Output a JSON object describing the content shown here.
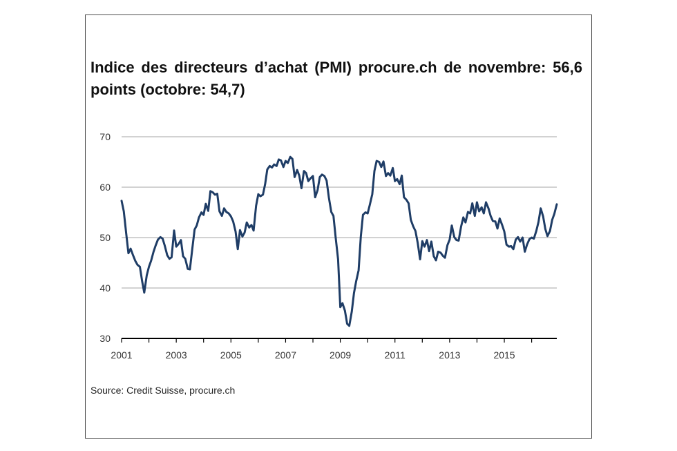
{
  "title": "Indice des directeurs d’achat (PMI) procure.ch de novembre: 56,6 points (octobre: 54,7)",
  "source": "Source: Credit Suisse, procure.ch",
  "colors": {
    "line": "#1f3d66",
    "grid": "#a6a6a6",
    "axis": "#000000"
  },
  "chart_data": {
    "type": "line",
    "title": "Indice des directeurs d’achat (PMI) procure.ch de novembre: 56,6 points (octobre: 54,7)",
    "xlabel": "",
    "ylabel": "",
    "xlim": [
      2001,
      2016.92
    ],
    "ylim": [
      30,
      70
    ],
    "yticks": [
      30,
      40,
      50,
      60,
      70
    ],
    "ytick_labels": [
      "30",
      "40",
      "50",
      "60",
      "70"
    ],
    "xticks": [
      2001,
      2003,
      2005,
      2007,
      2009,
      2011,
      2013,
      2015
    ],
    "xtick_labels": [
      "2001",
      "2003",
      "2005",
      "2007",
      "2009",
      "2011",
      "2013",
      "2015"
    ],
    "grid": true,
    "legend": "none",
    "series": [
      {
        "x": [
          2001.0,
          2001.08,
          2001.17,
          2001.25,
          2001.33,
          2001.42,
          2001.5,
          2001.58,
          2001.67,
          2001.75,
          2001.83,
          2001.92,
          2002.0,
          2002.08,
          2002.17,
          2002.25,
          2002.33,
          2002.42,
          2002.5,
          2002.58,
          2002.67,
          2002.75,
          2002.83,
          2002.92,
          2003.0,
          2003.08,
          2003.17,
          2003.25,
          2003.33,
          2003.42,
          2003.5,
          2003.58,
          2003.67,
          2003.75,
          2003.83,
          2003.92,
          2004.0,
          2004.08,
          2004.17,
          2004.25,
          2004.33,
          2004.42,
          2004.5,
          2004.58,
          2004.67,
          2004.75,
          2004.83,
          2004.92,
          2005.0,
          2005.08,
          2005.17,
          2005.25,
          2005.33,
          2005.42,
          2005.5,
          2005.58,
          2005.67,
          2005.75,
          2005.83,
          2005.92,
          2006.0,
          2006.08,
          2006.17,
          2006.25,
          2006.33,
          2006.42,
          2006.5,
          2006.58,
          2006.67,
          2006.75,
          2006.83,
          2006.92,
          2007.0,
          2007.08,
          2007.17,
          2007.25,
          2007.33,
          2007.42,
          2007.5,
          2007.58,
          2007.67,
          2007.75,
          2007.83,
          2007.92,
          2008.0,
          2008.08,
          2008.17,
          2008.25,
          2008.33,
          2008.42,
          2008.5,
          2008.58,
          2008.67,
          2008.75,
          2008.83,
          2008.92,
          2009.0,
          2009.08,
          2009.17,
          2009.25,
          2009.33,
          2009.42,
          2009.5,
          2009.58,
          2009.67,
          2009.75,
          2009.83,
          2009.92,
          2010.0,
          2010.08,
          2010.17,
          2010.25,
          2010.33,
          2010.42,
          2010.5,
          2010.58,
          2010.67,
          2010.75,
          2010.83,
          2010.92,
          2011.0,
          2011.08,
          2011.17,
          2011.25,
          2011.33,
          2011.42,
          2011.5,
          2011.58,
          2011.67,
          2011.75,
          2011.83,
          2011.92,
          2012.0,
          2012.08,
          2012.17,
          2012.25,
          2012.33,
          2012.42,
          2012.5,
          2012.58,
          2012.67,
          2012.75,
          2012.83,
          2012.92,
          2013.0,
          2013.08,
          2013.17,
          2013.25,
          2013.33,
          2013.42,
          2013.5,
          2013.58,
          2013.67,
          2013.75,
          2013.83,
          2013.92,
          2014.0,
          2014.08,
          2014.17,
          2014.25,
          2014.33,
          2014.42,
          2014.5,
          2014.58,
          2014.67,
          2014.75,
          2014.83,
          2014.92,
          2015.0,
          2015.08,
          2015.17,
          2015.25,
          2015.33,
          2015.42,
          2015.5,
          2015.58,
          2015.67,
          2015.75,
          2015.83,
          2015.92,
          2016.0,
          2016.08,
          2016.17,
          2016.25,
          2016.33,
          2016.42,
          2016.5,
          2016.58,
          2016.67,
          2016.75,
          2016.83,
          2016.92
        ],
        "values": [
          57.3,
          55.2,
          50.8,
          46.9,
          47.8,
          46.5,
          45.4,
          44.6,
          44.2,
          41.4,
          39.1,
          42.5,
          44.2,
          45.4,
          47.2,
          48.5,
          49.6,
          50.1,
          49.8,
          48.4,
          46.5,
          45.8,
          46.1,
          51.4,
          48.2,
          48.7,
          49.5,
          46.3,
          45.8,
          43.8,
          43.7,
          47.5,
          51.6,
          52.4,
          54.0,
          55.0,
          54.5,
          56.7,
          55.3,
          59.2,
          59.0,
          58.5,
          58.7,
          55.2,
          54.3,
          55.8,
          55.1,
          54.8,
          54.2,
          53.2,
          51.2,
          47.7,
          51.5,
          50.2,
          51.0,
          53.0,
          52.0,
          52.5,
          51.4,
          56.3,
          58.6,
          58.2,
          58.5,
          60.6,
          63.5,
          64.2,
          63.9,
          64.5,
          64.2,
          65.5,
          65.3,
          64.0,
          65.2,
          64.8,
          66.0,
          65.6,
          62.0,
          63.4,
          62.3,
          59.8,
          63.2,
          62.8,
          61.2,
          61.8,
          62.2,
          58.0,
          59.4,
          62.0,
          62.5,
          62.2,
          61.3,
          58.0,
          55.1,
          54.3,
          50.0,
          45.7,
          36.2,
          37.0,
          35.5,
          32.9,
          32.5,
          35.3,
          39.0,
          41.3,
          43.5,
          50.2,
          54.5,
          55.0,
          54.8,
          56.5,
          58.6,
          63.2,
          65.2,
          65.0,
          64.0,
          65.1,
          62.2,
          62.8,
          62.3,
          63.8,
          61.2,
          61.6,
          60.6,
          62.3,
          58.0,
          57.5,
          56.8,
          53.5,
          52.2,
          51.3,
          49.0,
          45.7,
          49.3,
          48.2,
          49.5,
          47.3,
          49.2,
          46.3,
          45.5,
          47.2,
          47.0,
          46.4,
          46.0,
          48.5,
          49.6,
          52.4,
          50.1,
          49.5,
          49.4,
          52.2,
          54.0,
          53.0,
          55.1,
          54.8,
          56.8,
          54.3,
          57.0,
          55.2,
          56.0,
          54.8,
          57.0,
          55.8,
          54.3,
          53.3,
          53.2,
          51.8,
          53.8,
          52.5,
          51.2,
          48.6,
          48.2,
          48.3,
          47.7,
          49.6,
          50.1,
          49.2,
          50.0,
          47.2,
          48.6,
          49.7,
          50.0,
          49.8,
          51.3,
          53.1,
          55.8,
          54.2,
          51.7,
          50.3,
          51.3,
          53.5,
          54.7,
          56.6
        ]
      }
    ]
  }
}
